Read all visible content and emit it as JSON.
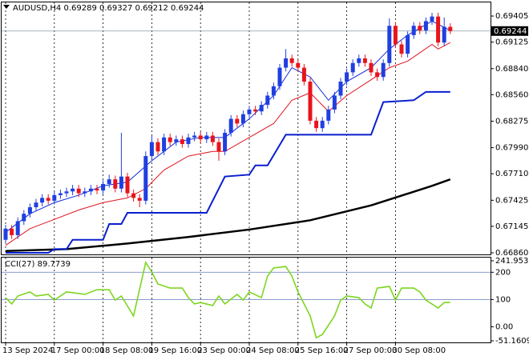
{
  "chart_data": [
    {
      "type": "candlestick",
      "title": "AUDUSD,H4  0.69289 0.69327 0.69212 0.69244",
      "up_color": "#1f3fe0",
      "down_color": "#e8141c",
      "open": [
        0.67,
        0.6712,
        0.6705,
        0.672,
        0.6728,
        0.6735,
        0.674,
        0.6745,
        0.6742,
        0.6748,
        0.675,
        0.6752,
        0.6755,
        0.675,
        0.6752,
        0.6755,
        0.6753,
        0.676,
        0.6765,
        0.6755,
        0.6768,
        0.675,
        0.6745,
        0.6742,
        0.679,
        0.6805,
        0.6795,
        0.681,
        0.6805,
        0.6808,
        0.6803,
        0.681,
        0.6812,
        0.6808,
        0.6812,
        0.6805,
        0.6795,
        0.6815,
        0.683,
        0.6825,
        0.6835,
        0.684,
        0.6838,
        0.6845,
        0.6855,
        0.6865,
        0.6885,
        0.6895,
        0.689,
        0.6885,
        0.687,
        0.6828,
        0.682,
        0.6828,
        0.684,
        0.6855,
        0.687,
        0.688,
        0.689,
        0.6895,
        0.689,
        0.688,
        0.6875,
        0.689,
        0.693,
        0.691,
        0.69,
        0.692,
        0.693,
        0.6925,
        0.6935,
        0.694,
        0.6912,
        0.69289
      ],
      "high": [
        0.6716,
        0.6716,
        0.6724,
        0.6732,
        0.6739,
        0.6744,
        0.6749,
        0.6749,
        0.6752,
        0.6754,
        0.6756,
        0.6759,
        0.6759,
        0.6756,
        0.6759,
        0.6759,
        0.6764,
        0.677,
        0.6769,
        0.6815,
        0.6772,
        0.6754,
        0.6749,
        0.6795,
        0.6812,
        0.6809,
        0.6814,
        0.6814,
        0.6812,
        0.6812,
        0.6814,
        0.6816,
        0.6816,
        0.6816,
        0.6816,
        0.6809,
        0.6819,
        0.6834,
        0.6834,
        0.6839,
        0.6844,
        0.6844,
        0.6849,
        0.6859,
        0.6869,
        0.6889,
        0.6905,
        0.6899,
        0.6894,
        0.6889,
        0.6874,
        0.6832,
        0.6832,
        0.6844,
        0.6859,
        0.6874,
        0.6884,
        0.6894,
        0.6899,
        0.6899,
        0.6894,
        0.6884,
        0.6894,
        0.6938,
        0.6934,
        0.6914,
        0.6924,
        0.6934,
        0.6934,
        0.6939,
        0.6944,
        0.6944,
        0.6939,
        0.69327
      ],
      "low": [
        0.6696,
        0.6701,
        0.6701,
        0.6716,
        0.6724,
        0.6731,
        0.6736,
        0.6738,
        0.6738,
        0.6744,
        0.6746,
        0.6748,
        0.6746,
        0.6746,
        0.6748,
        0.6749,
        0.6749,
        0.6756,
        0.6751,
        0.6751,
        0.6746,
        0.6741,
        0.6735,
        0.6738,
        0.6786,
        0.6791,
        0.6791,
        0.6801,
        0.6801,
        0.6799,
        0.6799,
        0.6806,
        0.6804,
        0.6804,
        0.6801,
        0.6785,
        0.6791,
        0.6811,
        0.6821,
        0.6821,
        0.6831,
        0.6834,
        0.6834,
        0.6841,
        0.6851,
        0.6861,
        0.6881,
        0.6886,
        0.6881,
        0.6866,
        0.6824,
        0.6816,
        0.6816,
        0.6824,
        0.6836,
        0.6851,
        0.6866,
        0.6876,
        0.6886,
        0.6886,
        0.6876,
        0.6871,
        0.6871,
        0.6886,
        0.6906,
        0.6896,
        0.6896,
        0.6916,
        0.6921,
        0.6921,
        0.6931,
        0.6908,
        0.6908,
        0.69212
      ],
      "close": [
        0.6712,
        0.6705,
        0.672,
        0.6728,
        0.6735,
        0.674,
        0.6745,
        0.6742,
        0.6748,
        0.675,
        0.6752,
        0.6755,
        0.675,
        0.6752,
        0.6755,
        0.6753,
        0.676,
        0.6765,
        0.6755,
        0.6768,
        0.675,
        0.6745,
        0.6742,
        0.679,
        0.6805,
        0.6795,
        0.681,
        0.6805,
        0.6808,
        0.6803,
        0.681,
        0.6812,
        0.6808,
        0.6812,
        0.6805,
        0.6795,
        0.6815,
        0.683,
        0.6825,
        0.6835,
        0.684,
        0.6838,
        0.6845,
        0.6855,
        0.6865,
        0.6885,
        0.6895,
        0.689,
        0.6885,
        0.687,
        0.6828,
        0.682,
        0.6828,
        0.684,
        0.6855,
        0.687,
        0.688,
        0.689,
        0.6895,
        0.689,
        0.688,
        0.6875,
        0.689,
        0.693,
        0.691,
        0.69,
        0.692,
        0.693,
        0.6925,
        0.6935,
        0.694,
        0.6912,
        0.69289,
        0.69244
      ],
      "last_price": 0.69244,
      "overlays": [
        {
          "color": "#000000",
          "x": [
            0,
            10,
            20,
            30,
            40,
            50,
            60,
            70,
            73
          ],
          "values": [
            0.6688,
            0.669,
            0.6696,
            0.6703,
            0.6711,
            0.6721,
            0.6737,
            0.6758,
            0.6765
          ]
        },
        {
          "color": "#0a1fcf",
          "x": [
            0,
            7,
            8,
            10,
            11,
            16,
            17,
            19,
            20,
            33,
            36,
            40,
            41,
            43,
            46,
            60,
            62,
            67,
            69,
            73
          ],
          "values": [
            0.6686,
            0.6686,
            0.669,
            0.669,
            0.67,
            0.67,
            0.6717,
            0.6717,
            0.6729,
            0.6729,
            0.6768,
            0.677,
            0.678,
            0.678,
            0.6813,
            0.6813,
            0.6848,
            0.685,
            0.6859,
            0.6859
          ]
        },
        {
          "color": "#e0141c",
          "x": [
            0,
            4,
            8,
            12,
            16,
            20,
            23,
            26,
            30,
            34,
            36,
            40,
            44,
            47,
            50,
            53,
            56,
            60,
            63,
            66,
            70,
            71,
            73
          ],
          "values": [
            0.6694,
            0.6712,
            0.6722,
            0.6732,
            0.674,
            0.6745,
            0.6755,
            0.6775,
            0.679,
            0.6795,
            0.6795,
            0.681,
            0.6825,
            0.685,
            0.6858,
            0.6838,
            0.6855,
            0.6872,
            0.6885,
            0.6892,
            0.691,
            0.6905,
            0.6912
          ]
        },
        {
          "color": "#1028d8",
          "x": [
            0,
            4,
            8,
            12,
            16,
            20,
            24,
            28,
            32,
            36,
            40,
            44,
            47,
            50,
            53,
            56,
            60,
            63,
            66,
            70,
            73
          ],
          "values": [
            0.6708,
            0.6728,
            0.674,
            0.6748,
            0.6758,
            0.6762,
            0.6785,
            0.6805,
            0.681,
            0.681,
            0.683,
            0.6855,
            0.6885,
            0.6875,
            0.685,
            0.687,
            0.6885,
            0.6905,
            0.692,
            0.6935,
            0.6925
          ]
        }
      ],
      "ylim": [
        0.66843,
        0.69543
      ],
      "yticks": [
        0.69405,
        0.69125,
        {
          "value": 0.6884,
          "label": "0.68840"
        },
        {
          "value": 0.6856,
          "label": "0.68560"
        },
        0.68275,
        {
          "value": 0.6799,
          "label": "0.67990"
        },
        {
          "value": 0.6771,
          "label": "0.67710"
        },
        0.67425,
        0.67145,
        {
          "value": 0.6686,
          "label": "0.66860"
        }
      ],
      "xticks": [
        {
          "value": 0,
          "label": "13 Sep 2024"
        },
        {
          "value": 8,
          "label": "17 Sep 00:00"
        },
        {
          "value": 16,
          "label": "18 Sep 08:00"
        },
        {
          "value": 24,
          "label": "19 Sep 16:00"
        },
        {
          "value": 32,
          "label": "23 Sep 00:00"
        },
        {
          "value": 40,
          "label": "24 Sep 08:00"
        },
        {
          "value": 48,
          "label": "25 Sep 16:00"
        },
        {
          "value": 56,
          "label": "27 Sep 00:00"
        },
        {
          "value": 64,
          "label": "30 Sep 08:00"
        }
      ]
    },
    {
      "type": "line",
      "title": "CCI(27) 89.7739",
      "color": "#7cd61e",
      "x": [
        0,
        1,
        2,
        4,
        5,
        7,
        8,
        10,
        13,
        15,
        17,
        18,
        19,
        21,
        23,
        24,
        25,
        27,
        29,
        30,
        31,
        32,
        34,
        35,
        36,
        38,
        39,
        40,
        42,
        43,
        44,
        46,
        47,
        48,
        50,
        51,
        52,
        54,
        55,
        56,
        58,
        59,
        60,
        61,
        63,
        64,
        65,
        67,
        68,
        69,
        71,
        72,
        73
      ],
      "values": [
        107,
        84,
        113,
        128,
        113,
        119,
        98,
        128,
        119,
        136,
        136,
        98,
        113,
        40,
        236,
        201,
        157,
        142,
        142,
        107,
        84,
        89,
        78,
        113,
        84,
        119,
        98,
        128,
        107,
        186,
        216,
        221,
        186,
        128,
        40,
        -40,
        -28,
        40,
        98,
        113,
        107,
        84,
        69,
        142,
        148,
        98,
        142,
        142,
        128,
        98,
        69,
        89,
        89.7739
      ],
      "ylim": [
        -51.1609,
        241.9535
      ],
      "yticks": [
        241.9535,
        200,
        100,
        {
          "value": 0,
          "label": "0.00"
        },
        -51.1609
      ],
      "levels": [
        200,
        100
      ]
    }
  ]
}
